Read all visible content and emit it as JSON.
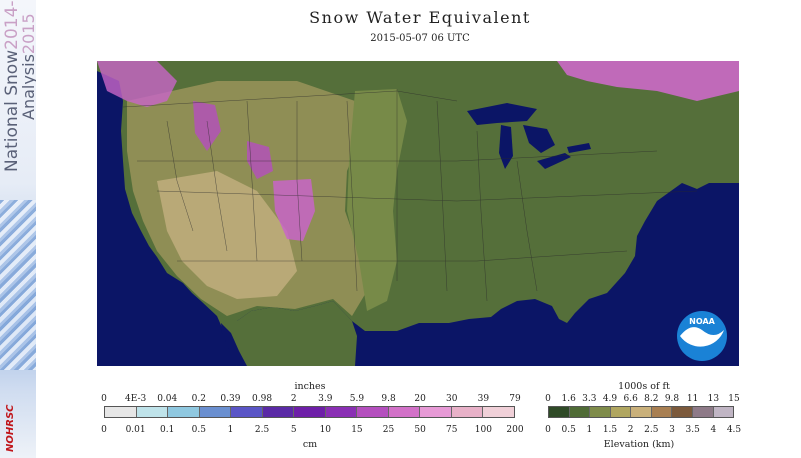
{
  "banner": {
    "line1": "National Snow",
    "line1_years": "2014-",
    "line2": "Analysis",
    "line2_years": "2015",
    "logo": "NOHRSC"
  },
  "title": "Snow Water Equivalent",
  "subtitle": "2015-05-07 06 UTC",
  "noaa_label": "NOAA",
  "swe_legend": {
    "top_title": "inches",
    "top_ticks": [
      "0",
      "4E-3",
      "0.04",
      "0.2",
      "0.39",
      "0.98",
      "2",
      "3.9",
      "5.9",
      "9.8",
      "20",
      "30",
      "39",
      "79"
    ],
    "bottom_ticks": [
      "0",
      "0.01",
      "0.1",
      "0.5",
      "1",
      "2.5",
      "5",
      "10",
      "15",
      "25",
      "50",
      "75",
      "100",
      "200"
    ],
    "bottom_title": "cm",
    "colors": [
      "#e6e6e6",
      "#bfe3ea",
      "#8fc8e0",
      "#6a8fd0",
      "#5a55c6",
      "#5b2aa6",
      "#6e1fa8",
      "#8a2fb4",
      "#b44fbe",
      "#d271c8",
      "#e79ad6",
      "#e8b1c8",
      "#f0d0d8"
    ]
  },
  "elev_legend": {
    "top_title": "1000s of ft",
    "top_ticks": [
      "0",
      "1.6",
      "3.3",
      "4.9",
      "6.6",
      "8.2",
      "9.8",
      "11",
      "13",
      "15"
    ],
    "bottom_ticks": [
      "0",
      "0.5",
      "1",
      "1.5",
      "2",
      "2.5",
      "3",
      "3.5",
      "4",
      "4.5"
    ],
    "bottom_title": "Elevation (km)",
    "colors": [
      "#2f4a27",
      "#4f6b36",
      "#7f8c4a",
      "#b0a660",
      "#c9b07a",
      "#a87f52",
      "#7c5a3c",
      "#8e7a88",
      "#c0b5c4"
    ]
  }
}
